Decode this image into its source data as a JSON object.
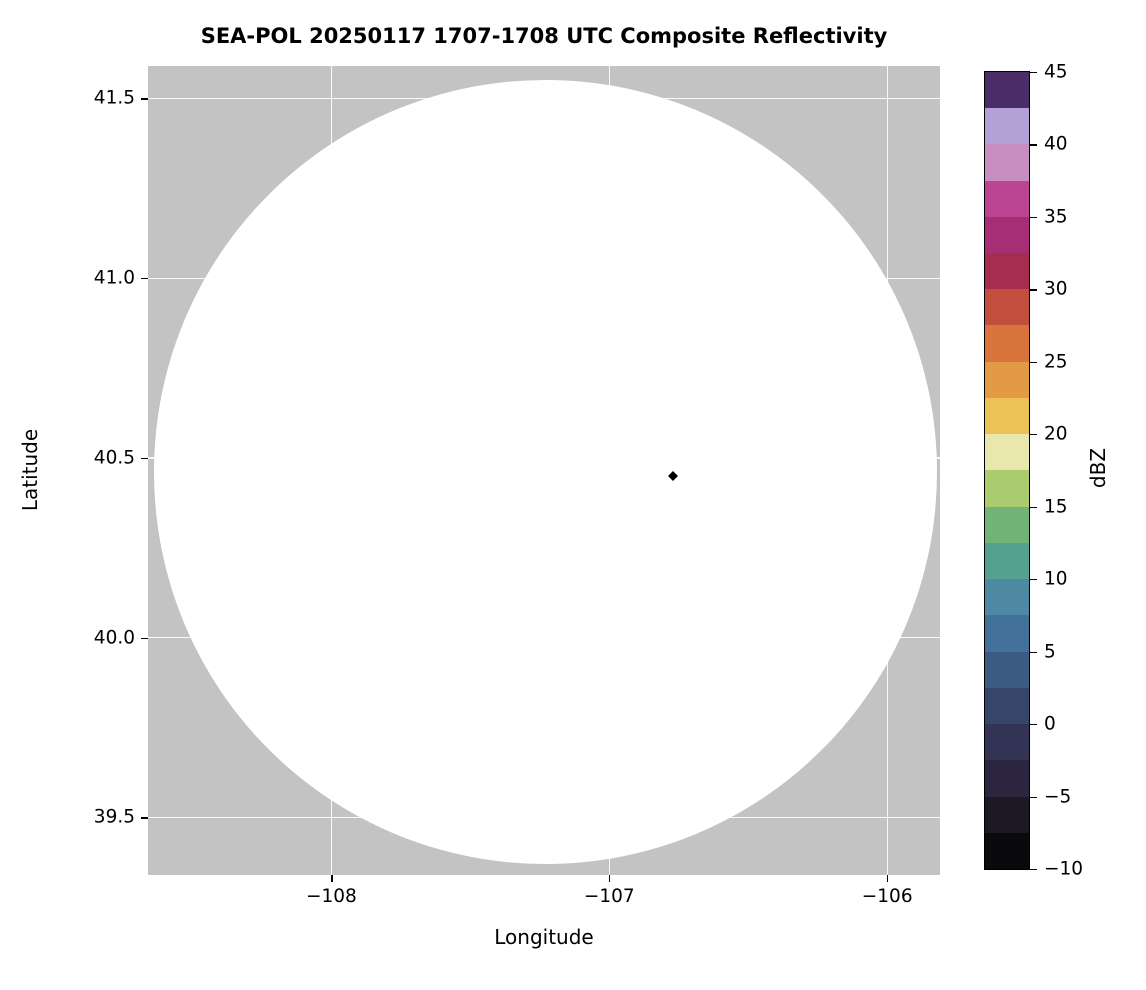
{
  "chart_data": {
    "type": "heatmap",
    "title": "SEA-POL 20250117 1707-1708 UTC Composite Reflectivity",
    "xlabel": "Longitude",
    "ylabel": "Latitude",
    "xlim": [
      -108.66,
      -105.81
    ],
    "ylim": [
      39.34,
      41.59
    ],
    "xticks": [
      -108,
      -107,
      -106
    ],
    "xtick_labels": [
      "−108",
      "−107",
      "−106"
    ],
    "yticks": [
      41.5,
      41.0,
      40.5,
      40.0,
      39.5
    ],
    "ytick_labels": [
      "41.5",
      "41.0",
      "40.5",
      "40.0",
      "39.5"
    ],
    "grid": true,
    "grid_color": "#ffffff",
    "no_data_color": "#c3c3c3",
    "radar_coverage": {
      "shape": "circle",
      "center_lon": -107.23,
      "center_lat": 40.46,
      "radius_lon_deg": 1.41,
      "radius_lat_deg": 1.09,
      "fill": "#ffffff"
    },
    "radar_marker": {
      "lon": -106.77,
      "lat": 40.45,
      "shape": "diamond",
      "color": "#000000"
    },
    "colorbar": {
      "label": "dBZ",
      "min": -10,
      "max": 45,
      "step": 2.5,
      "ticks": [
        45,
        40,
        35,
        30,
        25,
        20,
        15,
        10,
        5,
        0,
        -5,
        -10
      ],
      "tick_labels": [
        "45",
        "40",
        "35",
        "30",
        "25",
        "20",
        "15",
        "10",
        "5",
        "0",
        "−5",
        "−10"
      ],
      "segment_colors_bottom_to_top": [
        "#0a090c",
        "#1d1726",
        "#2b2540",
        "#333355",
        "#36466b",
        "#3b5b82",
        "#427199",
        "#4d89a2",
        "#55a08f",
        "#72b477",
        "#abcb6f",
        "#e9e7ac",
        "#ecc256",
        "#e39a45",
        "#d9753c",
        "#c24e3d",
        "#a52e4e",
        "#a62e74",
        "#bb4493",
        "#c98ec1",
        "#b5a0d6",
        "#4a2d66"
      ]
    }
  }
}
